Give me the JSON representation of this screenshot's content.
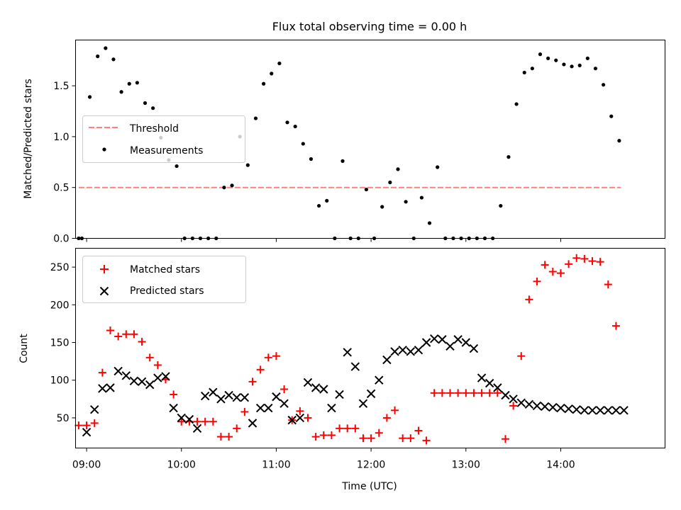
{
  "title": "Flux total observing time = 0.00 h",
  "xlabel": "Time (UTC)",
  "colors": {
    "threshold": "#ff7f7f",
    "measurements": "#000000",
    "matched": "#ff0000",
    "predicted": "#000000"
  },
  "chart_data": [
    {
      "type": "scatter",
      "ylabel": "Matched/Predicted stars",
      "xlim": [
        "08:53",
        "15:06"
      ],
      "ylim": [
        0,
        1.95
      ],
      "yticks": [
        "0.0",
        "0.5",
        "1.0",
        "1.5"
      ],
      "legend_position": "center-left",
      "legend": [
        "Threshold",
        "Measurements"
      ],
      "threshold": {
        "name": "Threshold",
        "x_start": "08:55",
        "x_end": "14:38",
        "y": 0.5
      },
      "series": [
        {
          "name": "Measurements",
          "x": [
            "08:55",
            "08:57",
            "09:02",
            "09:07",
            "09:12",
            "09:17",
            "09:22",
            "09:27",
            "09:32",
            "09:37",
            "09:42",
            "09:47",
            "09:52",
            "09:57",
            "10:02",
            "10:07",
            "10:12",
            "10:17",
            "10:22",
            "10:27",
            "10:32",
            "10:37",
            "10:42",
            "10:47",
            "10:52",
            "10:57",
            "11:02",
            "11:07",
            "11:12",
            "11:17",
            "11:22",
            "11:27",
            "11:32",
            "11:37",
            "11:42",
            "11:47",
            "11:52",
            "11:57",
            "12:02",
            "12:07",
            "12:12",
            "12:17",
            "12:22",
            "12:27",
            "12:32",
            "12:37",
            "12:42",
            "12:47",
            "12:52",
            "12:57",
            "13:02",
            "13:07",
            "13:12",
            "13:17",
            "13:22",
            "13:27",
            "13:32",
            "13:37",
            "13:42",
            "13:47",
            "13:52",
            "13:57",
            "14:02",
            "14:07",
            "14:12",
            "14:17",
            "14:22",
            "14:27",
            "14:32",
            "14:37"
          ],
          "y": [
            0.0,
            0.0,
            1.39,
            1.79,
            1.87,
            1.76,
            1.44,
            1.52,
            1.53,
            1.33,
            1.28,
            0.99,
            0.77,
            0.71,
            0.0,
            0.0,
            0.0,
            0.0,
            0.0,
            0.5,
            0.52,
            1.0,
            0.72,
            1.18,
            1.52,
            1.62,
            1.72,
            1.14,
            1.1,
            0.93,
            0.78,
            0.32,
            0.37,
            0.0,
            0.76,
            0.0,
            0.0,
            0.48,
            0.0,
            0.31,
            0.55,
            0.68,
            0.36,
            0.0,
            0.4,
            0.15,
            0.7,
            0.0,
            0.0,
            0.0,
            0.0,
            0.0,
            0.0,
            0.0,
            0.32,
            0.8,
            1.32,
            1.63,
            1.67,
            1.81,
            1.77,
            1.75,
            1.71,
            1.69,
            1.7,
            1.77,
            1.67,
            1.51,
            1.2,
            0.96
          ]
        }
      ]
    },
    {
      "type": "scatter",
      "ylabel": "Count",
      "xlim": [
        "08:53",
        "15:06"
      ],
      "ylim": [
        10,
        275
      ],
      "yticks": [
        "50",
        "100",
        "150",
        "200",
        "250"
      ],
      "xticks": [
        "09:00",
        "10:00",
        "11:00",
        "12:00",
        "13:00",
        "14:00"
      ],
      "legend_position": "top-left",
      "legend": [
        "Matched stars",
        "Predicted stars"
      ],
      "series": [
        {
          "name": "Matched stars",
          "x": [
            "08:55",
            "09:00",
            "09:05",
            "09:10",
            "09:15",
            "09:20",
            "09:25",
            "09:30",
            "09:35",
            "09:40",
            "09:45",
            "09:50",
            "09:55",
            "10:00",
            "10:05",
            "10:10",
            "10:15",
            "10:20",
            "10:25",
            "10:30",
            "10:35",
            "10:40",
            "10:45",
            "10:50",
            "10:55",
            "11:00",
            "11:05",
            "11:10",
            "11:15",
            "11:20",
            "11:25",
            "11:30",
            "11:35",
            "11:40",
            "11:45",
            "11:50",
            "11:55",
            "12:00",
            "12:05",
            "12:10",
            "12:15",
            "12:20",
            "12:25",
            "12:30",
            "12:35",
            "12:40",
            "12:45",
            "12:50",
            "12:55",
            "13:00",
            "13:05",
            "13:10",
            "13:15",
            "13:20",
            "13:25",
            "13:30",
            "13:35",
            "13:40",
            "13:45",
            "13:50",
            "13:55",
            "14:00",
            "14:05",
            "14:10",
            "14:15",
            "14:20",
            "14:25",
            "14:30",
            "14:35"
          ],
          "y": [
            40,
            40,
            43,
            110,
            166,
            158,
            161,
            161,
            151,
            130,
            120,
            101,
            81,
            45,
            45,
            45,
            45,
            45,
            25,
            25,
            36,
            58,
            98,
            114,
            130,
            132,
            88,
            47,
            59,
            50,
            25,
            27,
            27,
            36,
            36,
            36,
            23,
            23,
            30,
            50,
            60,
            23,
            23,
            33,
            20,
            83,
            83,
            83,
            83,
            83,
            83,
            83,
            83,
            83,
            22,
            66,
            132,
            207,
            231,
            253,
            244,
            242,
            254,
            262,
            261,
            258,
            257,
            227,
            172
          ]
        },
        {
          "name": "Predicted stars",
          "x": [
            "09:00",
            "09:05",
            "09:10",
            "09:15",
            "09:20",
            "09:25",
            "09:30",
            "09:35",
            "09:40",
            "09:45",
            "09:50",
            "09:55",
            "10:00",
            "10:05",
            "10:10",
            "10:15",
            "10:20",
            "10:25",
            "10:30",
            "10:35",
            "10:40",
            "10:45",
            "10:50",
            "10:55",
            "11:00",
            "11:05",
            "11:10",
            "11:15",
            "11:20",
            "11:25",
            "11:30",
            "11:35",
            "11:40",
            "11:45",
            "11:50",
            "11:55",
            "12:00",
            "12:05",
            "12:10",
            "12:15",
            "12:20",
            "12:25",
            "12:30",
            "12:35",
            "12:40",
            "12:45",
            "12:50",
            "12:55",
            "13:00",
            "13:05",
            "13:10",
            "13:15",
            "13:20",
            "13:25",
            "13:30",
            "13:35",
            "13:40",
            "13:45",
            "13:50",
            "13:55",
            "14:00",
            "14:05",
            "14:10",
            "14:15",
            "14:20",
            "14:25",
            "14:30",
            "14:35",
            "14:40"
          ],
          "y": [
            31,
            61,
            89,
            90,
            112,
            106,
            99,
            98,
            94,
            103,
            105,
            63,
            50,
            48,
            36,
            79,
            84,
            75,
            80,
            77,
            77,
            43,
            63,
            63,
            78,
            69,
            47,
            50,
            97,
            90,
            88,
            63,
            81,
            137,
            118,
            69,
            82,
            100,
            127,
            138,
            140,
            138,
            140,
            150,
            155,
            154,
            145,
            154,
            150,
            142,
            103,
            96,
            90,
            80,
            75,
            70,
            68,
            66,
            65,
            64,
            63,
            62,
            61,
            60,
            60,
            60,
            60,
            60,
            60
          ]
        }
      ]
    }
  ]
}
